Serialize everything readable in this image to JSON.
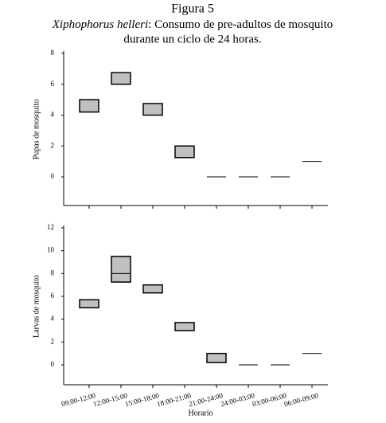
{
  "title": "Figura 5",
  "subtitle": {
    "species": "Xiphophorus helleri",
    "line1": ": Consumo de pre-adultos de mosquito",
    "line2": "durante un ciclo de 24 horas."
  },
  "chart_data": [
    {
      "type": "range",
      "ylabel": "Pupas de mosquito",
      "ylim": [
        0,
        8
      ],
      "yticks": [
        0,
        2,
        4,
        6,
        8
      ],
      "color": "#c0c0c0",
      "low": [
        4.2,
        6.0,
        4.0,
        1.25,
        0,
        0,
        0,
        1.0
      ],
      "high": [
        5.0,
        6.75,
        4.75,
        2.0,
        0,
        0,
        0,
        1.0
      ]
    },
    {
      "type": "range",
      "ylabel": "Larvas de mosquito",
      "xlabel": "Horario",
      "ylim": [
        0,
        12
      ],
      "yticks": [
        0,
        2,
        4,
        6,
        8,
        10,
        12
      ],
      "color": "#c0c0c0",
      "categories": [
        "09:00-12:00",
        "12:00-15:00",
        "15:00-18:00",
        "18:00-21:00",
        "21:00-24:00",
        "24:00-03:00",
        "03:00-06:00",
        "06:00-09:00"
      ],
      "low": [
        5.0,
        7.25,
        6.3,
        3.0,
        0.2,
        0,
        0,
        1.0
      ],
      "high": [
        5.7,
        9.5,
        7.0,
        3.7,
        1.0,
        0,
        0,
        1.0
      ],
      "median": [
        null,
        8.0,
        null,
        null,
        null,
        null,
        null,
        null
      ]
    }
  ]
}
